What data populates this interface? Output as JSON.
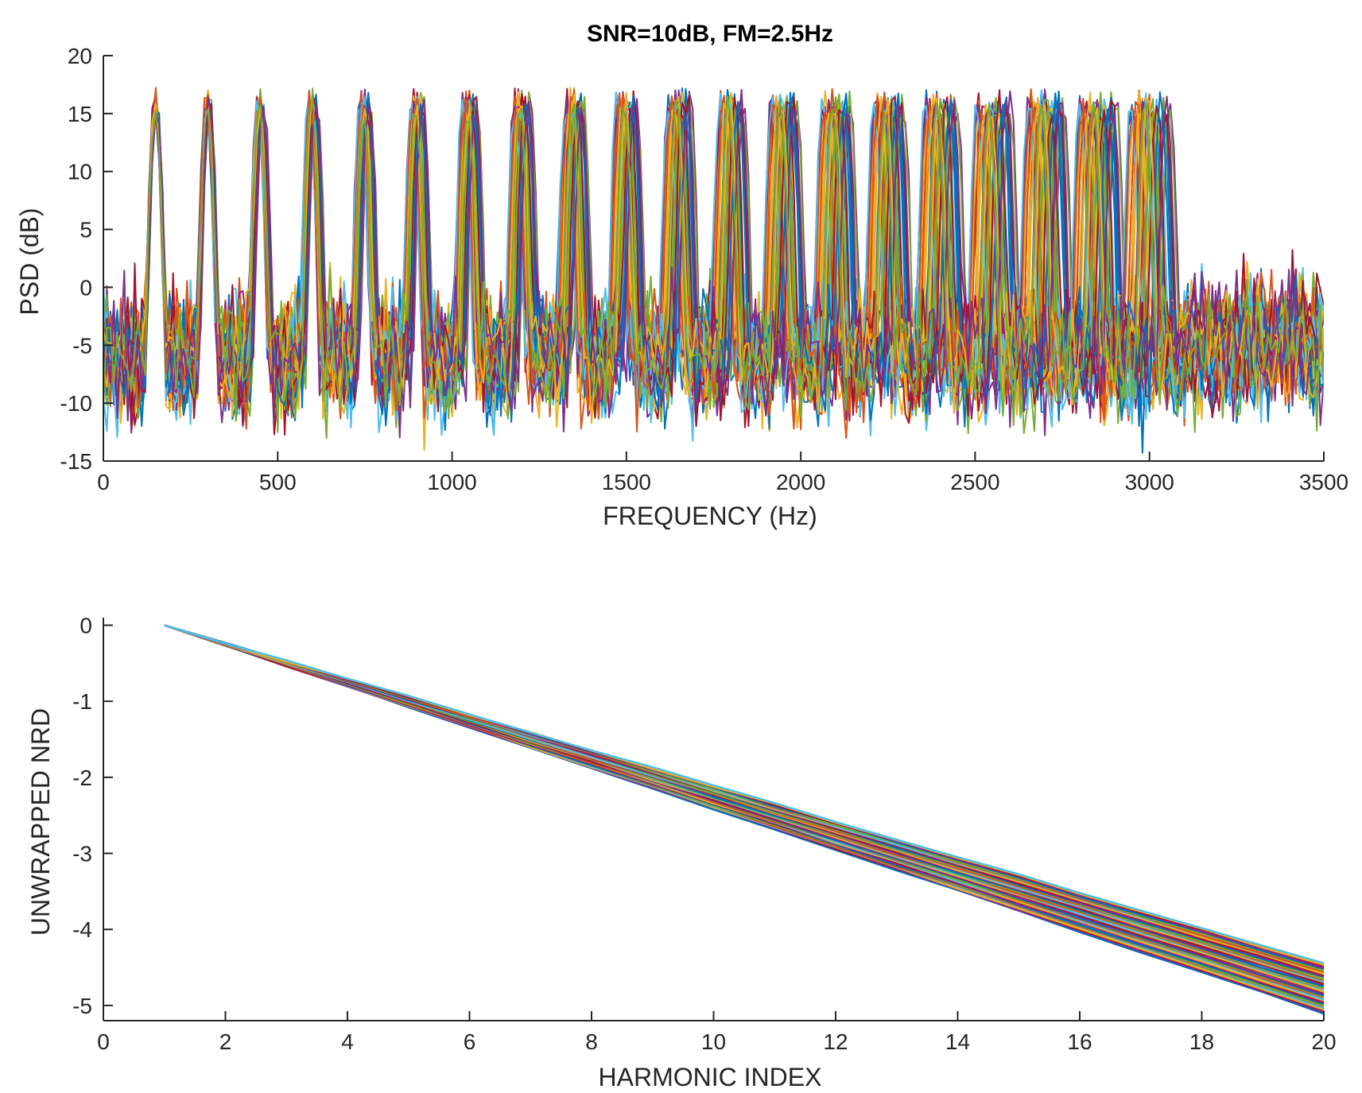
{
  "colors": [
    "#0072BD",
    "#D95319",
    "#EDB120",
    "#7E2F8E",
    "#77AC30",
    "#4DBEEE",
    "#A2142F"
  ],
  "chart_data": [
    {
      "type": "line",
      "title": "SNR=10dB, FM=2.5Hz",
      "xlabel": "FREQUENCY (Hz)",
      "ylabel": "PSD (dB)",
      "xlim": [
        0,
        3500
      ],
      "ylim": [
        -15,
        20
      ],
      "xticks": [
        0,
        500,
        1000,
        1500,
        2000,
        2500,
        3000,
        3500
      ],
      "yticks": [
        -15,
        -10,
        -5,
        0,
        5,
        10,
        15,
        20
      ],
      "xtick_labels": [
        "0",
        "500",
        "1000",
        "1500",
        "2000",
        "2500",
        "3000",
        "3500"
      ],
      "ytick_labels": [
        "-15",
        "-10",
        "-5",
        "0",
        "5",
        "10",
        "15",
        "20"
      ],
      "series_count": 40,
      "harmonic_count": 20,
      "fundamental_hz": 150,
      "fundamental_spread_hz": 3,
      "peak_db": 16,
      "noise_floor_db": -6,
      "noise_floor_above_3100hz_db": -5
    },
    {
      "type": "line",
      "title": "",
      "xlabel": "HARMONIC INDEX",
      "ylabel": "UNWRAPPED NRD",
      "xlim": [
        0,
        20
      ],
      "ylim": [
        -5.2,
        0.1
      ],
      "xticks": [
        0,
        2,
        4,
        6,
        8,
        10,
        12,
        14,
        16,
        18,
        20
      ],
      "yticks": [
        -5,
        -4,
        -3,
        -2,
        -1,
        0
      ],
      "xtick_labels": [
        "0",
        "2",
        "4",
        "6",
        "8",
        "10",
        "12",
        "14",
        "16",
        "18",
        "20"
      ],
      "ytick_labels": [
        "-5",
        "-4",
        "-3",
        "-2",
        "-1",
        "0"
      ],
      "series_count": 40,
      "x_start": 1,
      "x_end": 20,
      "y_start": 0,
      "y_end_min": -5.1,
      "y_end_max": -4.45
    }
  ]
}
